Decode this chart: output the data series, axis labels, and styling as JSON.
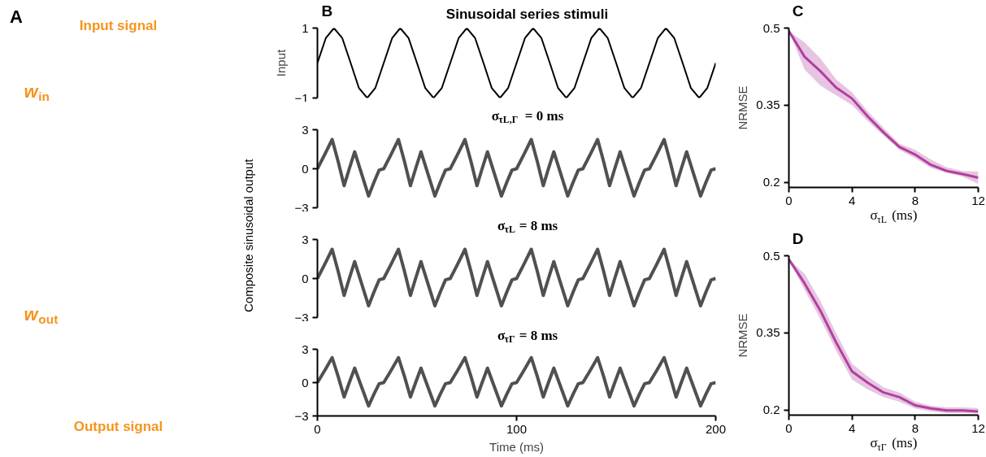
{
  "chart_data": [
    {
      "type": "other",
      "annotations": [
        "A",
        "Input signal",
        "w$_{in}$",
        "w$_{out}$",
        "Output signal"
      ]
    },
    {
      "type": "line",
      "title": "Sinusoidal series stimuli",
      "ylabel": "Input",
      "annotations": [
        "B"
      ],
      "xlim": [
        0,
        200
      ],
      "ylim": [
        -1,
        1
      ],
      "yticks": [
        -1,
        1
      ],
      "tick_labels": "y",
      "series": [
        {
          "color": "#000000",
          "x": [
            0,
            4.2,
            8.3,
            12.5,
            16.7,
            20.8,
            25,
            29.1,
            33.3,
            37.5,
            41.6,
            45.8,
            50,
            54.1,
            58.3,
            62.5,
            66.7,
            70.9,
            75,
            79.2,
            83.4,
            87.5,
            91.7,
            95.8,
            100,
            104.2,
            108.3,
            112.5,
            116.7,
            120.8,
            125,
            129.1,
            133.3,
            137.5,
            141.6,
            145.8,
            150,
            154.1,
            158.3,
            162.5,
            166.7,
            170.9,
            175,
            179.2,
            183.4,
            187.5,
            191.7,
            195.8,
            200
          ],
          "values": [
            0,
            0.71,
            1,
            0.71,
            0,
            -0.71,
            -1,
            -0.71,
            0,
            0.71,
            1,
            0.71,
            0,
            -0.71,
            -1,
            -0.71,
            0,
            0.71,
            1,
            0.71,
            0,
            -0.71,
            -1,
            -0.71,
            0,
            0.71,
            1,
            0.71,
            0,
            -0.71,
            -1,
            -0.71,
            0,
            0.71,
            1,
            0.71,
            0,
            -0.71,
            -1,
            -0.71,
            0,
            0.71,
            1,
            0.71,
            0,
            -0.71,
            -1,
            -0.71,
            0
          ]
        }
      ]
    },
    {
      "type": "line",
      "title": "σ$_{τL,Γ}$ = 0 ms",
      "xlim": [
        0,
        200
      ],
      "ylim": [
        -3,
        3
      ],
      "yticks": [
        -3,
        0,
        3
      ],
      "tick_labels": "y",
      "series": [
        {
          "color": "#505050",
          "x": [
            0,
            3.7,
            7.4,
            10.5,
            13.4,
            16,
            18.7,
            22.2,
            25.7,
            28.5,
            31,
            33.3,
            37,
            40.7,
            43.8,
            46.7,
            49.3,
            52,
            55.5,
            59,
            61.8,
            64.3,
            66.7,
            70.4,
            74.1,
            77.2,
            80.1,
            82.7,
            85.4,
            88.9,
            92.4,
            95.2,
            97.7,
            100,
            103.7,
            107.4,
            110.5,
            113.4,
            116,
            118.7,
            122.2,
            125.7,
            128.5,
            131,
            133.3,
            137,
            140.7,
            143.8,
            146.7,
            149.3,
            152,
            155.5,
            159,
            161.8,
            164.3,
            166.7,
            170.4,
            174.1,
            177.2,
            180.1,
            182.7,
            185.4,
            188.9,
            192.4,
            195.2,
            197.7,
            200
          ],
          "values": [
            0,
            1.1,
            2.25,
            0.5,
            -1.3,
            0,
            1.3,
            -0.4,
            -2.1,
            -1.0,
            -0.1,
            0,
            1.1,
            2.25,
            0.5,
            -1.3,
            0,
            1.3,
            -0.4,
            -2.1,
            -1.0,
            -0.1,
            0,
            1.1,
            2.25,
            0.5,
            -1.3,
            0,
            1.3,
            -0.4,
            -2.1,
            -1.0,
            -0.1,
            0,
            1.1,
            2.25,
            0.5,
            -1.3,
            0,
            1.3,
            -0.4,
            -2.1,
            -1.0,
            -0.1,
            0,
            1.1,
            2.25,
            0.5,
            -1.3,
            0,
            1.3,
            -0.4,
            -2.1,
            -1.0,
            -0.1,
            0,
            1.1,
            2.25,
            0.5,
            -1.3,
            0,
            1.3,
            -0.4,
            -2.1,
            -1.0,
            -0.1,
            0
          ]
        }
      ]
    },
    {
      "type": "line",
      "title": "σ$_{τL}$ = 8 ms",
      "ylabel": "Composite sinusoidal output",
      "xlim": [
        0,
        200
      ],
      "ylim": [
        -3,
        3
      ],
      "yticks": [
        -3,
        0,
        3
      ],
      "tick_labels": "y",
      "series": [
        {
          "color": "#505050",
          "x": [
            0,
            3.7,
            7.4,
            10.5,
            13.4,
            16,
            18.7,
            22.2,
            25.7,
            28.5,
            31,
            33.3,
            37,
            40.7,
            43.8,
            46.7,
            49.3,
            52,
            55.5,
            59,
            61.8,
            64.3,
            66.7,
            70.4,
            74.1,
            77.2,
            80.1,
            82.7,
            85.4,
            88.9,
            92.4,
            95.2,
            97.7,
            100,
            103.7,
            107.4,
            110.5,
            113.4,
            116,
            118.7,
            122.2,
            125.7,
            128.5,
            131,
            133.3,
            137,
            140.7,
            143.8,
            146.7,
            149.3,
            152,
            155.5,
            159,
            161.8,
            164.3,
            166.7,
            170.4,
            174.1,
            177.2,
            180.1,
            182.7,
            185.4,
            188.9,
            192.4,
            195.2,
            197.7,
            200
          ],
          "values": [
            0,
            1.1,
            2.25,
            0.5,
            -1.3,
            0,
            1.3,
            -0.4,
            -2.1,
            -1.0,
            -0.1,
            0,
            1.1,
            2.25,
            0.5,
            -1.3,
            0,
            1.3,
            -0.4,
            -2.1,
            -1.0,
            -0.1,
            0,
            1.1,
            2.25,
            0.5,
            -1.3,
            0,
            1.3,
            -0.4,
            -2.1,
            -1.0,
            -0.1,
            0,
            1.1,
            2.25,
            0.5,
            -1.3,
            0,
            1.3,
            -0.4,
            -2.1,
            -1.0,
            -0.1,
            0,
            1.1,
            2.25,
            0.5,
            -1.3,
            0,
            1.3,
            -0.4,
            -2.1,
            -1.0,
            -0.1,
            0,
            1.1,
            2.25,
            0.5,
            -1.3,
            0,
            1.3,
            -0.4,
            -2.1,
            -1.0,
            -0.1,
            0
          ]
        }
      ]
    },
    {
      "type": "line",
      "title": "σ$_{τΓ}$ = 8 ms",
      "xlabel": "Time (ms)",
      "xlim": [
        0,
        200
      ],
      "xticks": [
        0,
        100,
        200
      ],
      "ylim": [
        -3,
        3
      ],
      "yticks": [
        -3,
        0,
        3
      ],
      "series": [
        {
          "color": "#505050",
          "x": [
            0,
            3.7,
            7.4,
            10.5,
            13.4,
            16,
            18.7,
            22.2,
            25.7,
            28.5,
            31,
            33.3,
            37,
            40.7,
            43.8,
            46.7,
            49.3,
            52,
            55.5,
            59,
            61.8,
            64.3,
            66.7,
            70.4,
            74.1,
            77.2,
            80.1,
            82.7,
            85.4,
            88.9,
            92.4,
            95.2,
            97.7,
            100,
            103.7,
            107.4,
            110.5,
            113.4,
            116,
            118.7,
            122.2,
            125.7,
            128.5,
            131,
            133.3,
            137,
            140.7,
            143.8,
            146.7,
            149.3,
            152,
            155.5,
            159,
            161.8,
            164.3,
            166.7,
            170.4,
            174.1,
            177.2,
            180.1,
            182.7,
            185.4,
            188.9,
            192.4,
            195.2,
            197.7,
            200
          ],
          "values": [
            0,
            1.1,
            2.25,
            0.5,
            -1.3,
            0,
            1.3,
            -0.4,
            -2.1,
            -1.0,
            -0.1,
            0,
            1.1,
            2.25,
            0.5,
            -1.3,
            0,
            1.3,
            -0.4,
            -2.1,
            -1.0,
            -0.1,
            0,
            1.1,
            2.25,
            0.5,
            -1.3,
            0,
            1.3,
            -0.4,
            -2.1,
            -1.0,
            -0.1,
            0,
            1.1,
            2.25,
            0.5,
            -1.3,
            0,
            1.3,
            -0.4,
            -2.1,
            -1.0,
            -0.1,
            0,
            1.1,
            2.25,
            0.5,
            -1.3,
            0,
            1.3,
            -0.4,
            -2.1,
            -1.0,
            -0.1,
            0,
            1.1,
            2.25,
            0.5,
            -1.3,
            0,
            1.3,
            -0.4,
            -2.1,
            -1.0,
            -0.1,
            0
          ]
        }
      ]
    },
    {
      "type": "line",
      "ylabel": "NRMSE",
      "xlabel": "σ$_{τL}$ (ms)",
      "annotations": [
        "C"
      ],
      "xlim": [
        0,
        12
      ],
      "xticks": [
        0,
        4,
        8,
        12
      ],
      "ylim": [
        0.19,
        0.5
      ],
      "yticks": [
        0.2,
        0.35,
        0.5
      ],
      "series": [
        {
          "color": "#b0409e",
          "x": [
            0,
            1,
            2,
            3,
            4,
            5,
            6,
            7,
            8,
            9,
            10,
            11,
            12
          ],
          "values": [
            0.494,
            0.444,
            0.416,
            0.384,
            0.363,
            0.328,
            0.297,
            0.269,
            0.254,
            0.234,
            0.222,
            0.216,
            0.209
          ],
          "lower": [
            0.494,
            0.419,
            0.388,
            0.369,
            0.35,
            0.319,
            0.291,
            0.263,
            0.247,
            0.228,
            0.219,
            0.211,
            0.197
          ],
          "upper": [
            0.494,
            0.472,
            0.441,
            0.4,
            0.375,
            0.338,
            0.306,
            0.275,
            0.263,
            0.244,
            0.229,
            0.222,
            0.221
          ]
        }
      ]
    },
    {
      "type": "line",
      "ylabel": "NRMSE",
      "xlabel": "σ$_{τΓ}$ (ms)",
      "annotations": [
        "D"
      ],
      "xlim": [
        0,
        12
      ],
      "xticks": [
        0,
        4,
        8,
        12
      ],
      "ylim": [
        0.19,
        0.5
      ],
      "yticks": [
        0.2,
        0.35,
        0.5
      ],
      "series": [
        {
          "color": "#b0409e",
          "x": [
            0,
            1,
            2,
            3,
            4,
            5,
            6,
            7,
            8,
            9,
            10,
            11,
            12
          ],
          "values": [
            0.493,
            0.446,
            0.393,
            0.331,
            0.275,
            0.253,
            0.234,
            0.225,
            0.209,
            0.203,
            0.199,
            0.199,
            0.197
          ],
          "lower": [
            0.493,
            0.433,
            0.377,
            0.315,
            0.259,
            0.24,
            0.225,
            0.216,
            0.203,
            0.197,
            0.194,
            0.194,
            0.193
          ],
          "upper": [
            0.493,
            0.465,
            0.412,
            0.349,
            0.29,
            0.265,
            0.244,
            0.234,
            0.216,
            0.208,
            0.205,
            0.205,
            0.204
          ]
        }
      ]
    }
  ]
}
